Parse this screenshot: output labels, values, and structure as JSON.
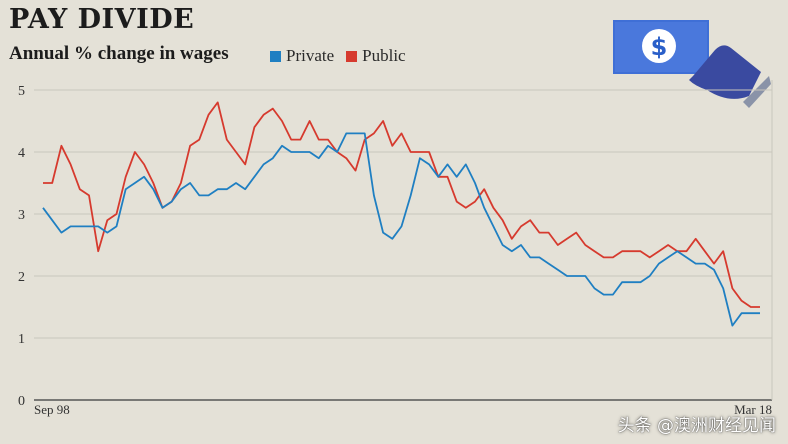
{
  "header": {
    "title": "PAY DIVIDE",
    "subtitle": "Annual % change in wages"
  },
  "watermark": "头条 @澳洲财经见闻",
  "icon": {
    "name": "dollar-bill-hand-icon",
    "bill_color": "#3f6fd6",
    "hand_color": "#3a4aa0"
  },
  "chart_data": {
    "type": "line",
    "x_start_label": "Sep 98",
    "x_end_label": "Mar 18",
    "ylim": [
      0,
      5
    ],
    "yticks": [
      0,
      1,
      2,
      3,
      4,
      5
    ],
    "grid": true,
    "legend_placement": "top-left",
    "series": [
      {
        "name": "Private",
        "color": "#1f7fc2",
        "values": [
          3.1,
          2.9,
          2.7,
          2.8,
          2.8,
          2.8,
          2.8,
          2.7,
          2.8,
          3.4,
          3.5,
          3.6,
          3.4,
          3.1,
          3.2,
          3.4,
          3.5,
          3.3,
          3.3,
          3.4,
          3.4,
          3.5,
          3.4,
          3.6,
          3.8,
          3.9,
          4.1,
          4.0,
          4.0,
          4.0,
          3.9,
          4.1,
          4.0,
          4.3,
          4.3,
          4.3,
          3.3,
          2.7,
          2.6,
          2.8,
          3.3,
          3.9,
          3.8,
          3.6,
          3.8,
          3.6,
          3.8,
          3.5,
          3.1,
          2.8,
          2.5,
          2.4,
          2.5,
          2.3,
          2.3,
          2.2,
          2.1,
          2.0,
          2.0,
          2.0,
          1.8,
          1.7,
          1.7,
          1.9,
          1.9,
          1.9,
          2.0,
          2.2,
          2.3,
          2.4,
          2.3,
          2.2,
          2.2,
          2.1,
          1.8,
          1.2,
          1.4,
          1.4,
          1.4
        ]
      },
      {
        "name": "Public",
        "color": "#d63a2e",
        "values": [
          3.5,
          3.5,
          4.1,
          3.8,
          3.4,
          3.3,
          2.4,
          2.9,
          3.0,
          3.6,
          4.0,
          3.8,
          3.5,
          3.1,
          3.2,
          3.5,
          4.1,
          4.2,
          4.6,
          4.8,
          4.2,
          4.0,
          3.8,
          4.4,
          4.6,
          4.7,
          4.5,
          4.2,
          4.2,
          4.5,
          4.2,
          4.2,
          4.0,
          3.9,
          3.7,
          4.2,
          4.3,
          4.5,
          4.1,
          4.3,
          4.0,
          4.0,
          4.0,
          3.6,
          3.6,
          3.2,
          3.1,
          3.2,
          3.4,
          3.1,
          2.9,
          2.6,
          2.8,
          2.9,
          2.7,
          2.7,
          2.5,
          2.6,
          2.7,
          2.5,
          2.4,
          2.3,
          2.3,
          2.4,
          2.4,
          2.4,
          2.3,
          2.4,
          2.5,
          2.4,
          2.4,
          2.6,
          2.4,
          2.2,
          2.4,
          1.8,
          1.6,
          1.5,
          1.5
        ]
      }
    ]
  }
}
